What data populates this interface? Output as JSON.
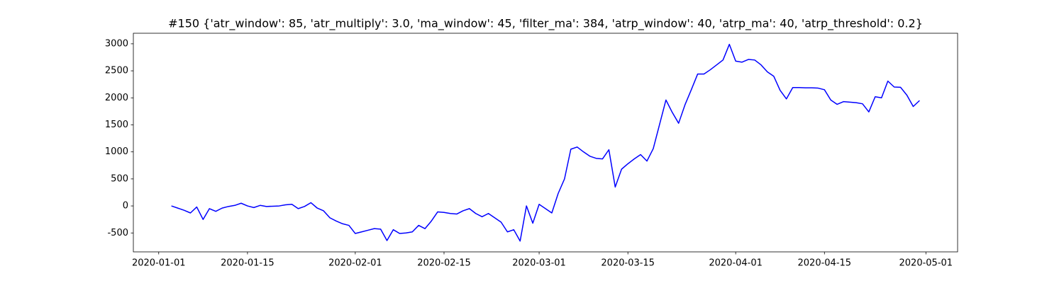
{
  "chart_data": {
    "type": "line",
    "title": "#150 {'atr_window': 85, 'atr_multiply': 3.0, 'ma_window': 45, 'filter_ma': 384, 'atrp_window': 40, 'atrp_ma': 40, 'atrp_threshold': 0.2}",
    "x": [
      "2020-01-03",
      "2020-01-04",
      "2020-01-05",
      "2020-01-06",
      "2020-01-07",
      "2020-01-08",
      "2020-01-09",
      "2020-01-10",
      "2020-01-11",
      "2020-01-12",
      "2020-01-13",
      "2020-01-14",
      "2020-01-15",
      "2020-01-16",
      "2020-01-17",
      "2020-01-18",
      "2020-01-19",
      "2020-01-20",
      "2020-01-21",
      "2020-01-22",
      "2020-01-23",
      "2020-01-24",
      "2020-01-25",
      "2020-01-26",
      "2020-01-27",
      "2020-01-28",
      "2020-01-29",
      "2020-01-30",
      "2020-01-31",
      "2020-02-01",
      "2020-02-02",
      "2020-02-03",
      "2020-02-04",
      "2020-02-05",
      "2020-02-06",
      "2020-02-07",
      "2020-02-08",
      "2020-02-09",
      "2020-02-10",
      "2020-02-11",
      "2020-02-12",
      "2020-02-13",
      "2020-02-14",
      "2020-02-15",
      "2020-02-16",
      "2020-02-17",
      "2020-02-18",
      "2020-02-19",
      "2020-02-20",
      "2020-02-21",
      "2020-02-22",
      "2020-02-23",
      "2020-02-24",
      "2020-02-25",
      "2020-02-26",
      "2020-02-27",
      "2020-02-28",
      "2020-02-29",
      "2020-03-01",
      "2020-03-02",
      "2020-03-03",
      "2020-03-04",
      "2020-03-05",
      "2020-03-06",
      "2020-03-07",
      "2020-03-08",
      "2020-03-09",
      "2020-03-10",
      "2020-03-11",
      "2020-03-12",
      "2020-03-13",
      "2020-03-14",
      "2020-03-15",
      "2020-03-16",
      "2020-03-17",
      "2020-03-18",
      "2020-03-19",
      "2020-03-20",
      "2020-03-21",
      "2020-03-22",
      "2020-03-23",
      "2020-03-24",
      "2020-03-25",
      "2020-03-26",
      "2020-03-27",
      "2020-03-28",
      "2020-03-29",
      "2020-03-30",
      "2020-03-31",
      "2020-04-01",
      "2020-04-02",
      "2020-04-03",
      "2020-04-04",
      "2020-04-05",
      "2020-04-06",
      "2020-04-07",
      "2020-04-08",
      "2020-04-09",
      "2020-04-10",
      "2020-04-11",
      "2020-04-12",
      "2020-04-13",
      "2020-04-14",
      "2020-04-15",
      "2020-04-16",
      "2020-04-17",
      "2020-04-18",
      "2020-04-19",
      "2020-04-20",
      "2020-04-21",
      "2020-04-22",
      "2020-04-23",
      "2020-04-24",
      "2020-04-25",
      "2020-04-26",
      "2020-04-27",
      "2020-04-28",
      "2020-04-29",
      "2020-04-30"
    ],
    "series": [
      {
        "color": "#0000ff",
        "values": [
          0,
          -40,
          -80,
          -130,
          -20,
          -250,
          -50,
          -100,
          -40,
          -10,
          10,
          50,
          0,
          -30,
          10,
          -10,
          -5,
          0,
          20,
          30,
          -50,
          -10,
          60,
          -40,
          -90,
          -220,
          -280,
          -330,
          -360,
          -510,
          -480,
          -450,
          -420,
          -430,
          -640,
          -440,
          -510,
          -500,
          -480,
          -360,
          -420,
          -280,
          -110,
          -120,
          -140,
          -150,
          -90,
          -50,
          -140,
          -200,
          -140,
          -220,
          -300,
          -480,
          -440,
          -650,
          0,
          -320,
          30,
          -50,
          -130,
          230,
          500,
          1050,
          1090,
          1000,
          920,
          880,
          870,
          1040,
          350,
          680,
          780,
          870,
          950,
          830,
          1060,
          1510,
          1960,
          1730,
          1530,
          1870,
          2150,
          2440,
          2440,
          2520,
          2610,
          2700,
          2990,
          2680,
          2660,
          2710,
          2700,
          2610,
          2480,
          2400,
          2140,
          1980,
          2190,
          2190,
          2185,
          2185,
          2180,
          2150,
          1960,
          1880,
          1930,
          1920,
          1910,
          1890,
          1740,
          2020,
          2000,
          2310,
          2200,
          2195,
          2050,
          1840,
          1950
        ]
      }
    ],
    "xlim": [
      "2019-12-28",
      "2020-05-06"
    ],
    "xticks": [
      "2020-01-01",
      "2020-01-15",
      "2020-02-01",
      "2020-02-15",
      "2020-03-01",
      "2020-03-15",
      "2020-04-01",
      "2020-04-15",
      "2020-05-01"
    ],
    "ylim": [
      -850,
      3195
    ],
    "yticks": [
      -500,
      0,
      500,
      1000,
      1500,
      2000,
      2500,
      3000
    ]
  }
}
